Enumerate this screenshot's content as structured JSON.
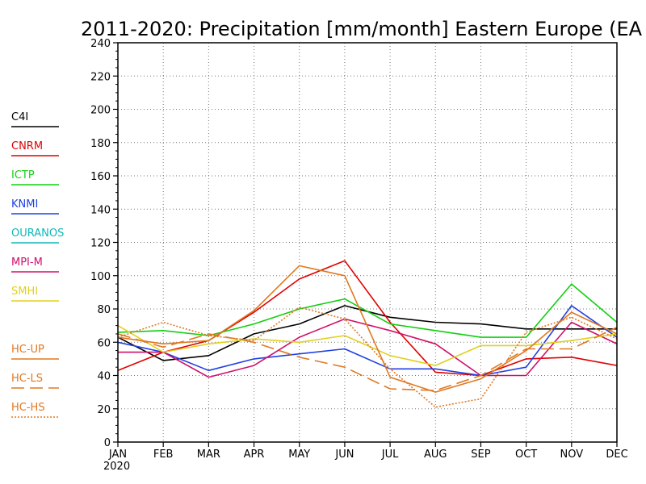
{
  "chart_data": {
    "type": "line",
    "title": "2011-2020: Precipitation [mm/month] Eastern Europe (EA",
    "categories": [
      "JAN",
      "FEB",
      "MAR",
      "APR",
      "MAY",
      "JUN",
      "JUL",
      "AUG",
      "SEP",
      "OCT",
      "NOV",
      "DEC"
    ],
    "year_label": "2020",
    "ylim": [
      0,
      240
    ],
    "yticks": [
      0,
      20,
      40,
      60,
      80,
      100,
      120,
      140,
      160,
      180,
      200,
      220,
      240
    ],
    "grid": true,
    "legend_position": "left",
    "series": [
      {
        "name": "C4I",
        "color": "#000000",
        "style": "solid",
        "values": [
          63,
          49,
          52,
          65,
          71,
          82,
          75,
          72,
          71,
          68,
          68,
          68
        ]
      },
      {
        "name": "CNRM",
        "color": "#e00000",
        "style": "solid",
        "values": [
          43,
          54,
          61,
          78,
          98,
          109,
          72,
          42,
          40,
          50,
          51,
          46
        ]
      },
      {
        "name": "ICTP",
        "color": "#10d010",
        "style": "solid",
        "values": [
          66,
          67,
          64,
          71,
          80,
          86,
          71,
          67,
          63,
          63,
          95,
          72
        ]
      },
      {
        "name": "KNMI",
        "color": "#2040e0",
        "style": "solid",
        "values": [
          60,
          54,
          43,
          50,
          53,
          56,
          44,
          44,
          40,
          45,
          82,
          63
        ]
      },
      {
        "name": "OURANOS",
        "color": "#10b8b8",
        "style": "solid",
        "values": [
          null,
          null,
          null,
          null,
          null,
          null,
          null,
          null,
          null,
          null,
          null,
          null
        ]
      },
      {
        "name": "MPI-M",
        "color": "#d0106a",
        "style": "solid",
        "values": [
          54,
          54,
          39,
          46,
          63,
          74,
          67,
          59,
          40,
          40,
          72,
          59
        ]
      },
      {
        "name": "SMHI",
        "color": "#e0d020",
        "style": "solid",
        "values": [
          70,
          54,
          59,
          62,
          60,
          64,
          52,
          46,
          58,
          58,
          61,
          65
        ]
      },
      {
        "name": "HC-UP",
        "color": "#e07820",
        "style": "solid",
        "values": [
          63,
          59,
          61,
          79,
          106,
          100,
          39,
          30,
          38,
          55,
          78,
          65
        ]
      },
      {
        "name": "HC-LS",
        "color": "#e07820",
        "style": "dashed",
        "values": [
          65,
          57,
          65,
          60,
          51,
          45,
          32,
          31,
          40,
          56,
          56,
          69
        ]
      },
      {
        "name": "HC-HS",
        "color": "#e07820",
        "style": "dotted",
        "values": [
          63,
          72,
          64,
          61,
          81,
          74,
          44,
          21,
          26,
          66,
          75,
          62
        ]
      }
    ]
  }
}
